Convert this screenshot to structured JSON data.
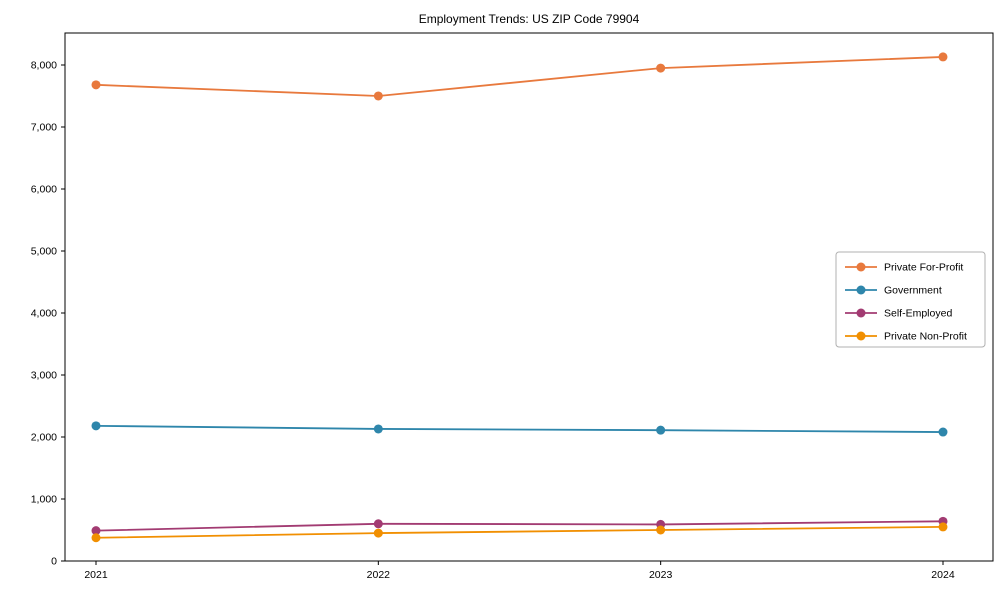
{
  "chart_data": {
    "type": "line",
    "title": "Employment Trends: US ZIP Code 79904",
    "x": [
      2021,
      2022,
      2023,
      2024
    ],
    "series": [
      {
        "name": "Private For-Profit",
        "color": "#E8793D",
        "values": [
          7680,
          7500,
          7950,
          8130
        ]
      },
      {
        "name": "Government",
        "color": "#2E86AB",
        "values": [
          2180,
          2130,
          2110,
          2080
        ]
      },
      {
        "name": "Self-Employed",
        "color": "#A23B72",
        "values": [
          490,
          600,
          590,
          640
        ]
      },
      {
        "name": "Private Non-Profit",
        "color": "#F18F01",
        "values": [
          375,
          450,
          500,
          550
        ]
      }
    ],
    "xlabel": "",
    "ylabel": "",
    "ylim": [
      0,
      8516
    ],
    "yticks": [
      0,
      1000,
      2000,
      3000,
      4000,
      5000,
      6000,
      7000,
      8000
    ],
    "ytick_labels": [
      "0",
      "1,000",
      "2,000",
      "3,000",
      "4,000",
      "5,000",
      "6,000",
      "7,000",
      "8,000"
    ],
    "xtick_labels": [
      "2021",
      "2022",
      "2023",
      "2024"
    ],
    "grid": false,
    "legend_position": "center-right",
    "axis_color": "#000000",
    "legend_border_color": "#b0b0b0",
    "background_color": "#ffffff"
  }
}
